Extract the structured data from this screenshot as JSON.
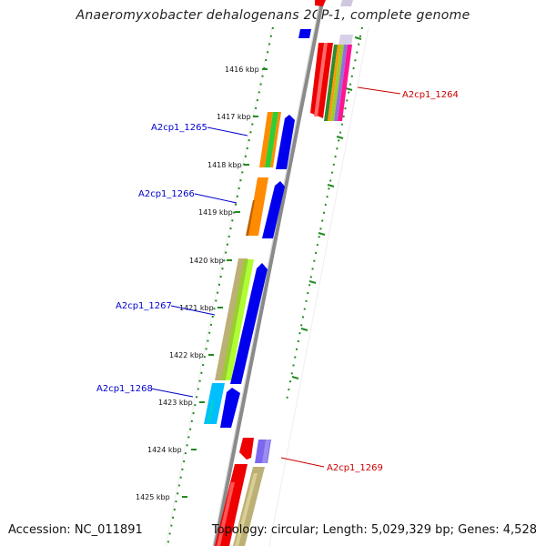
{
  "header": {
    "title": "Anaeromyxobacter dehalogenans 2CP-1, complete genome"
  },
  "footer": {
    "accession": "Accession: NC_011891",
    "topology": "Topology: circular; Length: 5,029,329 bp; Genes: 4,528"
  },
  "ruler": {
    "labels": [
      "1416 kbp",
      "1417 kbp",
      "1418 kbp",
      "1419 kbp",
      "1420 kbp",
      "1421 kbp",
      "1422 kbp",
      "1423 kbp",
      "1424 kbp",
      "1425 kbp"
    ]
  },
  "genes": [
    {
      "name": "A2cp1_1264",
      "strand": "reverse",
      "color": "#cc0000"
    },
    {
      "name": "A2cp1_1265",
      "strand": "forward",
      "color": "#0000cc"
    },
    {
      "name": "A2cp1_1266",
      "strand": "forward",
      "color": "#0000cc"
    },
    {
      "name": "A2cp1_1267",
      "strand": "forward",
      "color": "#0000cc"
    },
    {
      "name": "A2cp1_1268",
      "strand": "forward",
      "color": "#0000cc"
    },
    {
      "name": "A2cp1_1269",
      "strand": "reverse",
      "color": "#cc0000"
    }
  ],
  "colors": {
    "backbone": "#888888",
    "tick": "#228b22",
    "forward_cds": "#0000ee",
    "reverse_cds": "#ee0000"
  }
}
